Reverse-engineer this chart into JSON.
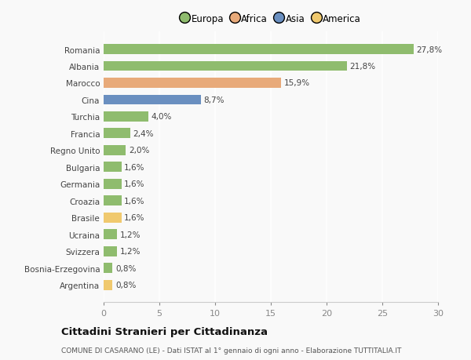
{
  "categories": [
    "Argentina",
    "Bosnia-Erzegovina",
    "Svizzera",
    "Ucraina",
    "Brasile",
    "Croazia",
    "Germania",
    "Bulgaria",
    "Regno Unito",
    "Francia",
    "Turchia",
    "Cina",
    "Marocco",
    "Albania",
    "Romania"
  ],
  "values": [
    0.8,
    0.8,
    1.2,
    1.2,
    1.6,
    1.6,
    1.6,
    1.6,
    2.0,
    2.4,
    4.0,
    8.7,
    15.9,
    21.8,
    27.8
  ],
  "labels": [
    "0,8%",
    "0,8%",
    "1,2%",
    "1,2%",
    "1,6%",
    "1,6%",
    "1,6%",
    "1,6%",
    "2,0%",
    "2,4%",
    "4,0%",
    "8,7%",
    "15,9%",
    "21,8%",
    "27,8%"
  ],
  "colors": [
    "#f0c96e",
    "#8fbc6e",
    "#8fbc6e",
    "#8fbc6e",
    "#f0c96e",
    "#8fbc6e",
    "#8fbc6e",
    "#8fbc6e",
    "#8fbc6e",
    "#8fbc6e",
    "#8fbc6e",
    "#6a8fc0",
    "#e8aa7a",
    "#8fbc6e",
    "#8fbc6e"
  ],
  "legend_labels": [
    "Europa",
    "Africa",
    "Asia",
    "America"
  ],
  "legend_colors": [
    "#8fbc6e",
    "#e8aa7a",
    "#6a8fc0",
    "#f0c96e"
  ],
  "title": "Cittadini Stranieri per Cittadinanza",
  "subtitle": "COMUNE DI CASARANO (LE) - Dati ISTAT al 1° gennaio di ogni anno - Elaborazione TUTTITALIA.IT",
  "xlim": [
    0,
    30
  ],
  "xticks": [
    0,
    5,
    10,
    15,
    20,
    25,
    30
  ],
  "background_color": "#f9f9f9",
  "bar_height": 0.6
}
